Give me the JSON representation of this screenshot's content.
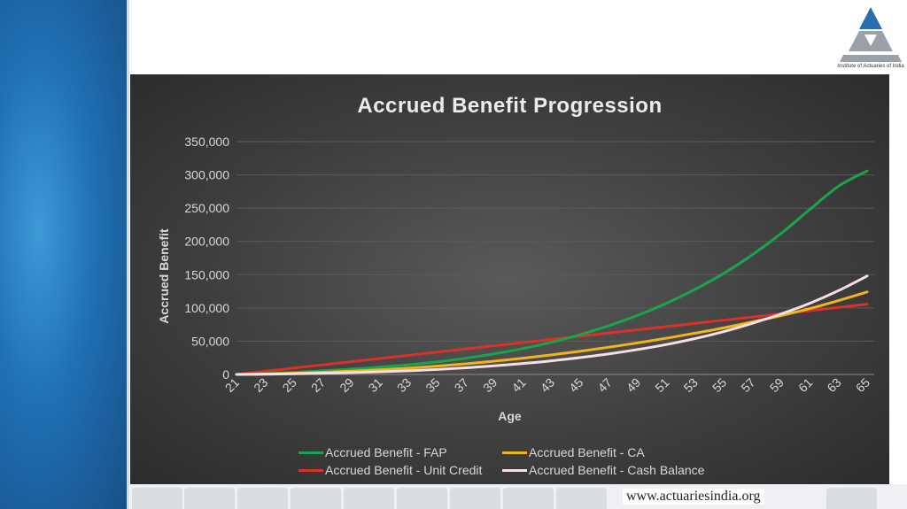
{
  "logo": {
    "caption": "Institute of Actuaries of India",
    "icon": "actuaries-logo-icon"
  },
  "footer": {
    "url": "www.actuariesindia.org"
  },
  "colors": {
    "fap": "#1ba54a",
    "ca": "#f1b51c",
    "unit_credit": "#d8322a",
    "cash_balance": "#f7dfe6",
    "grid": "#5b5b5b",
    "text": "#d8d8d8"
  },
  "chart_data": {
    "type": "line",
    "title": "Accrued Benefit Progression",
    "xlabel": "Age",
    "ylabel": "Accrued Benefit",
    "ylim": [
      0,
      350000
    ],
    "yticks": [
      "0",
      "50,000",
      "100,000",
      "150,000",
      "200,000",
      "250,000",
      "300,000",
      "350,000"
    ],
    "x_ticks": [
      21,
      23,
      25,
      27,
      29,
      31,
      33,
      35,
      37,
      39,
      41,
      43,
      45,
      47,
      49,
      51,
      53,
      55,
      57,
      59,
      61,
      63,
      65
    ],
    "x": [
      21,
      23,
      25,
      27,
      29,
      31,
      33,
      35,
      37,
      39,
      41,
      43,
      45,
      47,
      49,
      51,
      53,
      55,
      57,
      59,
      61,
      63,
      65
    ],
    "grid": true,
    "legend_position": "bottom",
    "series": [
      {
        "name": "Accrued Benefit - FAP",
        "color": "#1ba54a",
        "values": [
          0,
          1400,
          3200,
          5500,
          8000,
          11000,
          14500,
          19000,
          24500,
          31000,
          39000,
          48500,
          60000,
          73500,
          89000,
          107000,
          128000,
          152000,
          180000,
          212000,
          248000,
          283000,
          306000
        ]
      },
      {
        "name": "Accrued Benefit - CA",
        "color": "#f1b51c",
        "values": [
          0,
          700,
          1800,
          3200,
          5000,
          7000,
          9500,
          12500,
          16000,
          20000,
          24500,
          29500,
          35000,
          41000,
          47500,
          54500,
          62000,
          70000,
          79000,
          88500,
          99000,
          111000,
          124000
        ]
      },
      {
        "name": "Accrued Benefit - Unit Credit",
        "color": "#d8322a",
        "values": [
          0,
          4800,
          9600,
          14400,
          19200,
          24000,
          28800,
          33600,
          38400,
          43200,
          48000,
          52800,
          57600,
          62400,
          67200,
          72000,
          76800,
          81600,
          86400,
          91200,
          96000,
          100800,
          105600
        ]
      },
      {
        "name": "Accrued Benefit - Cash Balance",
        "color": "#f7dfe6",
        "values": [
          0,
          400,
          1000,
          1800,
          2800,
          4000,
          5500,
          7500,
          10000,
          13000,
          16500,
          20500,
          25500,
          31000,
          37500,
          45000,
          54000,
          64500,
          77000,
          91000,
          107000,
          126000,
          148000
        ]
      }
    ]
  }
}
